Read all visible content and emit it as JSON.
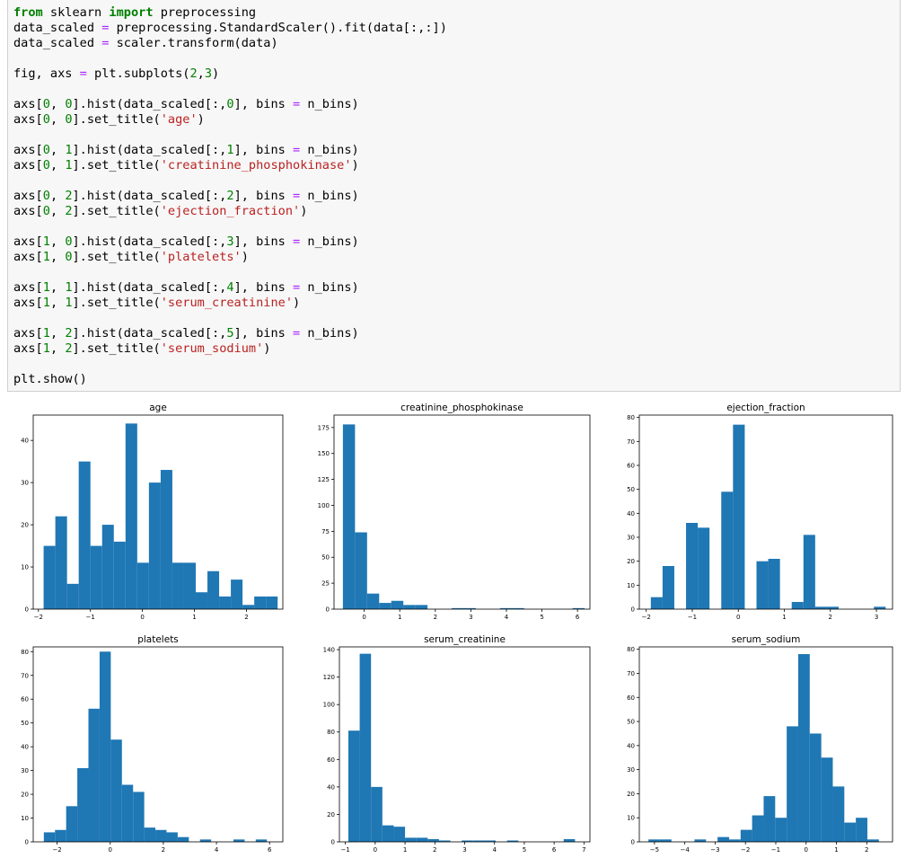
{
  "code_cell": {
    "lines": [
      [
        [
          "kw",
          "from"
        ],
        [
          "t",
          " sklearn "
        ],
        [
          "kw",
          "import"
        ],
        [
          "t",
          " preprocessing"
        ]
      ],
      [
        [
          "t",
          "data_scaled "
        ],
        [
          "op",
          "="
        ],
        [
          "t",
          " preprocessing.StandardScaler().fit(data[:,:])"
        ]
      ],
      [
        [
          "t",
          "data_scaled "
        ],
        [
          "op",
          "="
        ],
        [
          "t",
          " scaler.transform(data)"
        ]
      ],
      [],
      [
        [
          "t",
          "fig, axs "
        ],
        [
          "op",
          "="
        ],
        [
          "t",
          " plt.subplots("
        ],
        [
          "num",
          "2"
        ],
        [
          "t",
          ","
        ],
        [
          "num",
          "3"
        ],
        [
          "t",
          ")"
        ]
      ],
      [],
      [
        [
          "t",
          "axs["
        ],
        [
          "num",
          "0"
        ],
        [
          "t",
          ", "
        ],
        [
          "num",
          "0"
        ],
        [
          "t",
          "].hist(data_scaled[:,"
        ],
        [
          "num",
          "0"
        ],
        [
          "t",
          "], bins "
        ],
        [
          "op",
          "="
        ],
        [
          "t",
          " n_bins)"
        ]
      ],
      [
        [
          "t",
          "axs["
        ],
        [
          "num",
          "0"
        ],
        [
          "t",
          ", "
        ],
        [
          "num",
          "0"
        ],
        [
          "t",
          "].set_title("
        ],
        [
          "str",
          "'age'"
        ],
        [
          "t",
          ")"
        ]
      ],
      [],
      [
        [
          "t",
          "axs["
        ],
        [
          "num",
          "0"
        ],
        [
          "t",
          ", "
        ],
        [
          "num",
          "1"
        ],
        [
          "t",
          "].hist(data_scaled[:,"
        ],
        [
          "num",
          "1"
        ],
        [
          "t",
          "], bins "
        ],
        [
          "op",
          "="
        ],
        [
          "t",
          " n_bins)"
        ]
      ],
      [
        [
          "t",
          "axs["
        ],
        [
          "num",
          "0"
        ],
        [
          "t",
          ", "
        ],
        [
          "num",
          "1"
        ],
        [
          "t",
          "].set_title("
        ],
        [
          "str",
          "'creatinine_phosphokinase'"
        ],
        [
          "t",
          ")"
        ]
      ],
      [],
      [
        [
          "t",
          "axs["
        ],
        [
          "num",
          "0"
        ],
        [
          "t",
          ", "
        ],
        [
          "num",
          "2"
        ],
        [
          "t",
          "].hist(data_scaled[:,"
        ],
        [
          "num",
          "2"
        ],
        [
          "t",
          "], bins "
        ],
        [
          "op",
          "="
        ],
        [
          "t",
          " n_bins)"
        ]
      ],
      [
        [
          "t",
          "axs["
        ],
        [
          "num",
          "0"
        ],
        [
          "t",
          ", "
        ],
        [
          "num",
          "2"
        ],
        [
          "t",
          "].set_title("
        ],
        [
          "str",
          "'ejection_fraction'"
        ],
        [
          "t",
          ")"
        ]
      ],
      [],
      [
        [
          "t",
          "axs["
        ],
        [
          "num",
          "1"
        ],
        [
          "t",
          ", "
        ],
        [
          "num",
          "0"
        ],
        [
          "t",
          "].hist(data_scaled[:,"
        ],
        [
          "num",
          "3"
        ],
        [
          "t",
          "], bins "
        ],
        [
          "op",
          "="
        ],
        [
          "t",
          " n_bins)"
        ]
      ],
      [
        [
          "t",
          "axs["
        ],
        [
          "num",
          "1"
        ],
        [
          "t",
          ", "
        ],
        [
          "num",
          "0"
        ],
        [
          "t",
          "].set_title("
        ],
        [
          "str",
          "'platelets'"
        ],
        [
          "t",
          ")"
        ]
      ],
      [],
      [
        [
          "t",
          "axs["
        ],
        [
          "num",
          "1"
        ],
        [
          "t",
          ", "
        ],
        [
          "num",
          "1"
        ],
        [
          "t",
          "].hist(data_scaled[:,"
        ],
        [
          "num",
          "4"
        ],
        [
          "t",
          "], bins "
        ],
        [
          "op",
          "="
        ],
        [
          "t",
          " n_bins)"
        ]
      ],
      [
        [
          "t",
          "axs["
        ],
        [
          "num",
          "1"
        ],
        [
          "t",
          ", "
        ],
        [
          "num",
          "1"
        ],
        [
          "t",
          "].set_title("
        ],
        [
          "str",
          "'serum_creatinine'"
        ],
        [
          "t",
          ")"
        ]
      ],
      [],
      [
        [
          "t",
          "axs["
        ],
        [
          "num",
          "1"
        ],
        [
          "t",
          ", "
        ],
        [
          "num",
          "2"
        ],
        [
          "t",
          "].hist(data_scaled[:,"
        ],
        [
          "num",
          "5"
        ],
        [
          "t",
          "], bins "
        ],
        [
          "op",
          "="
        ],
        [
          "t",
          " n_bins)"
        ]
      ],
      [
        [
          "t",
          "axs["
        ],
        [
          "num",
          "1"
        ],
        [
          "t",
          ", "
        ],
        [
          "num",
          "2"
        ],
        [
          "t",
          "].set_title("
        ],
        [
          "str",
          "'serum_sodium'"
        ],
        [
          "t",
          ")"
        ]
      ],
      [],
      [
        [
          "t",
          "plt.show()"
        ]
      ]
    ]
  },
  "colors": {
    "bar": "#1f77b4",
    "syntax_keyword": "#008000",
    "syntax_operator": "#aa22ff",
    "syntax_string": "#ba2121"
  },
  "chart_data": [
    {
      "type": "bar",
      "title": "age",
      "xlim": [
        -2.1,
        2.7
      ],
      "ylim": [
        0,
        46
      ],
      "xticks": [
        -2,
        -1,
        0,
        1,
        2
      ],
      "yticks": [
        0,
        10,
        20,
        30,
        40
      ],
      "bin_start": -1.9,
      "bin_width": 0.225,
      "values": [
        15,
        22,
        6,
        35,
        15,
        20,
        16,
        44,
        11,
        30,
        33,
        11,
        11,
        4,
        9,
        3,
        7,
        1,
        3,
        3
      ]
    },
    {
      "type": "bar",
      "title": "creatinine_phosphokinase",
      "xlim": [
        -0.85,
        6.35
      ],
      "ylim": [
        0,
        187
      ],
      "xticks": [
        0,
        1,
        2,
        3,
        4,
        5,
        6
      ],
      "yticks": [
        0,
        25,
        50,
        75,
        100,
        125,
        150,
        175
      ],
      "bin_start": -0.6,
      "bin_width": 0.34,
      "values": [
        178,
        74,
        15,
        6,
        8,
        4,
        4,
        0,
        0,
        1,
        1,
        0,
        0,
        1,
        1,
        0,
        0,
        0,
        0,
        1
      ]
    },
    {
      "type": "bar",
      "title": "ejection_fraction",
      "xlim": [
        -2.15,
        3.35
      ],
      "ylim": [
        0,
        81
      ],
      "xticks": [
        -2,
        -1,
        0,
        1,
        2,
        3
      ],
      "yticks": [
        0,
        10,
        20,
        30,
        40,
        50,
        60,
        70,
        80
      ],
      "bin_start": -1.9,
      "bin_width": 0.255,
      "values": [
        5,
        18,
        0,
        36,
        34,
        0,
        49,
        77,
        0,
        20,
        21,
        0,
        3,
        31,
        1,
        1,
        0,
        0,
        0,
        1
      ]
    },
    {
      "type": "bar",
      "title": "platelets",
      "xlim": [
        -2.9,
        6.5
      ],
      "ylim": [
        0,
        82
      ],
      "xticks": [
        -2,
        0,
        2,
        4,
        6
      ],
      "yticks": [
        0,
        10,
        20,
        30,
        40,
        50,
        60,
        70,
        80
      ],
      "bin_start": -2.5,
      "bin_width": 0.42,
      "values": [
        4,
        5,
        15,
        31,
        56,
        80,
        43,
        24,
        21,
        6,
        5,
        4,
        2,
        0,
        1,
        0,
        0,
        1,
        0,
        1
      ]
    },
    {
      "type": "bar",
      "title": "serum_creatinine",
      "xlim": [
        -1.2,
        7.2
      ],
      "ylim": [
        0,
        142
      ],
      "xticks": [
        -1,
        0,
        1,
        2,
        3,
        4,
        5,
        6,
        7
      ],
      "yticks": [
        0,
        20,
        40,
        60,
        80,
        100,
        120,
        140
      ],
      "bin_start": -0.9,
      "bin_width": 0.38,
      "values": [
        81,
        137,
        40,
        12,
        11,
        3,
        3,
        2,
        1,
        0,
        1,
        1,
        1,
        0,
        1,
        0,
        0,
        0,
        0,
        2
      ]
    },
    {
      "type": "bar",
      "title": "serum_sodium",
      "xlim": [
        -5.5,
        2.85
      ],
      "ylim": [
        0,
        81
      ],
      "xticks": [
        -5,
        -4,
        -3,
        -2,
        -1,
        0,
        1,
        2
      ],
      "yticks": [
        0,
        10,
        20,
        30,
        40,
        50,
        60,
        70,
        80
      ],
      "bin_start": -5.2,
      "bin_width": 0.38,
      "values": [
        1,
        1,
        0,
        0,
        1,
        0,
        2,
        1,
        5,
        11,
        19,
        10,
        48,
        78,
        45,
        35,
        23,
        8,
        10,
        1
      ]
    }
  ]
}
